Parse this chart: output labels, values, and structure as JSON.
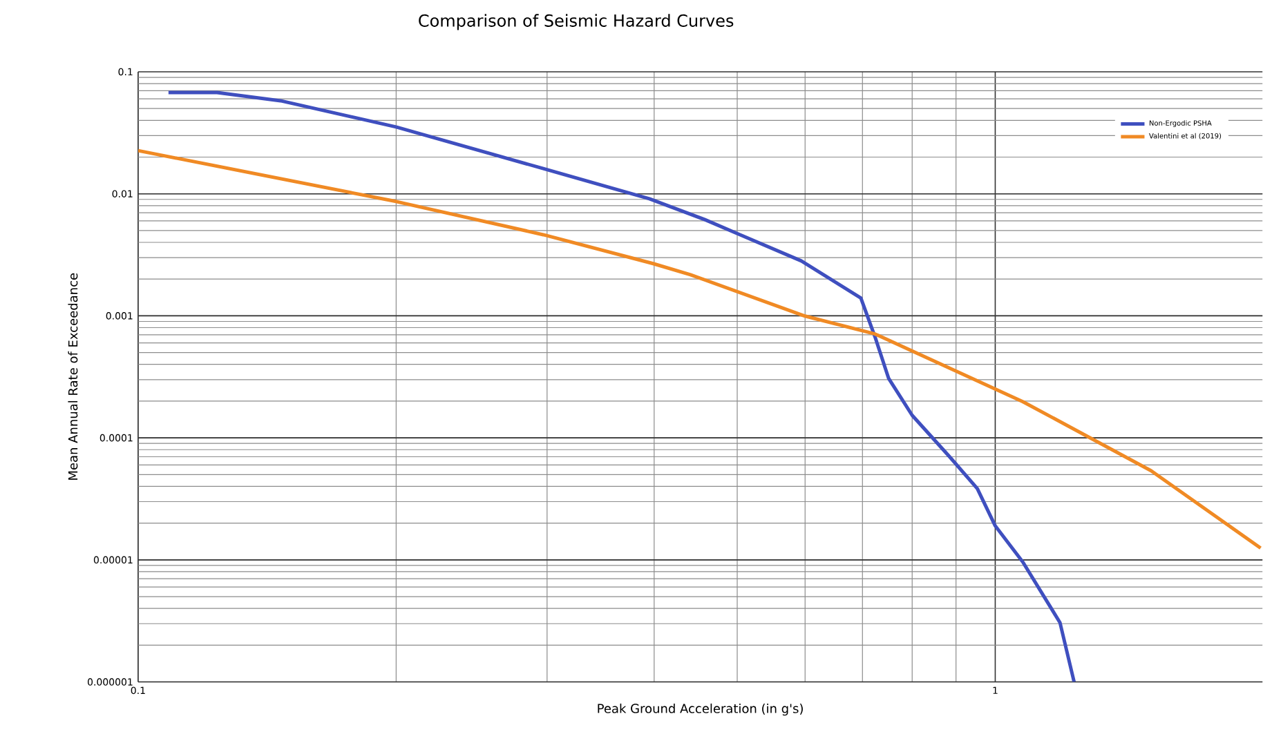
{
  "chart_data": {
    "type": "line",
    "title": "Comparison of Seismic Hazard Curves",
    "xlabel": "Peak Ground Acceleration (in g's)",
    "ylabel": "Mean Annual Rate of Exceedance",
    "log": "xy",
    "grid": true,
    "legend": "top right",
    "marker": "none",
    "line_style": "solid",
    "xlim": [
      0.1,
      2.05
    ],
    "ylim": [
      1e-06,
      0.1
    ],
    "xticks": [
      0.1,
      1
    ],
    "yticks": [
      {
        "value": 1e-06,
        "label": "0.000001"
      },
      {
        "value": 1e-05,
        "label": "0.00001"
      },
      {
        "value": 0.0001,
        "label": "0.0001"
      },
      {
        "value": 0.001,
        "label": "0.001"
      },
      {
        "value": 0.01,
        "label": "0.01"
      },
      {
        "value": 0.1,
        "label": "0.1"
      }
    ],
    "series": [
      {
        "name": "Non-Ergodic PSHA",
        "color": "#3f4fbf",
        "x": [
          0.1085,
          0.1236,
          0.1466,
          0.2,
          0.297,
          0.395,
          0.458,
          0.499,
          0.594,
          0.697,
          0.724,
          0.751,
          0.8,
          0.885,
          0.953,
          1.0,
          1.077,
          1.19,
          1.236
        ],
        "values": [
          0.0676,
          0.0676,
          0.0579,
          0.0353,
          0.0161,
          0.0091,
          0.00616,
          0.00475,
          0.00282,
          0.0014,
          0.000673,
          0.000308,
          0.000153,
          6.98e-05,
          3.84e-05,
          1.9e-05,
          9.6e-06,
          3.06e-06,
          1e-06
        ]
      },
      {
        "name": "Valentini et al (2019)",
        "color": "#f08a24",
        "x": [
          0.1,
          0.2,
          0.297,
          0.399,
          0.441,
          0.6,
          0.724,
          1.077,
          1.52,
          2.04
        ],
        "values": [
          0.0226,
          0.00865,
          0.00462,
          0.00268,
          0.00217,
          0.000995,
          0.00071,
          0.000198,
          5.38e-05,
          1.25e-05
        ]
      }
    ]
  }
}
